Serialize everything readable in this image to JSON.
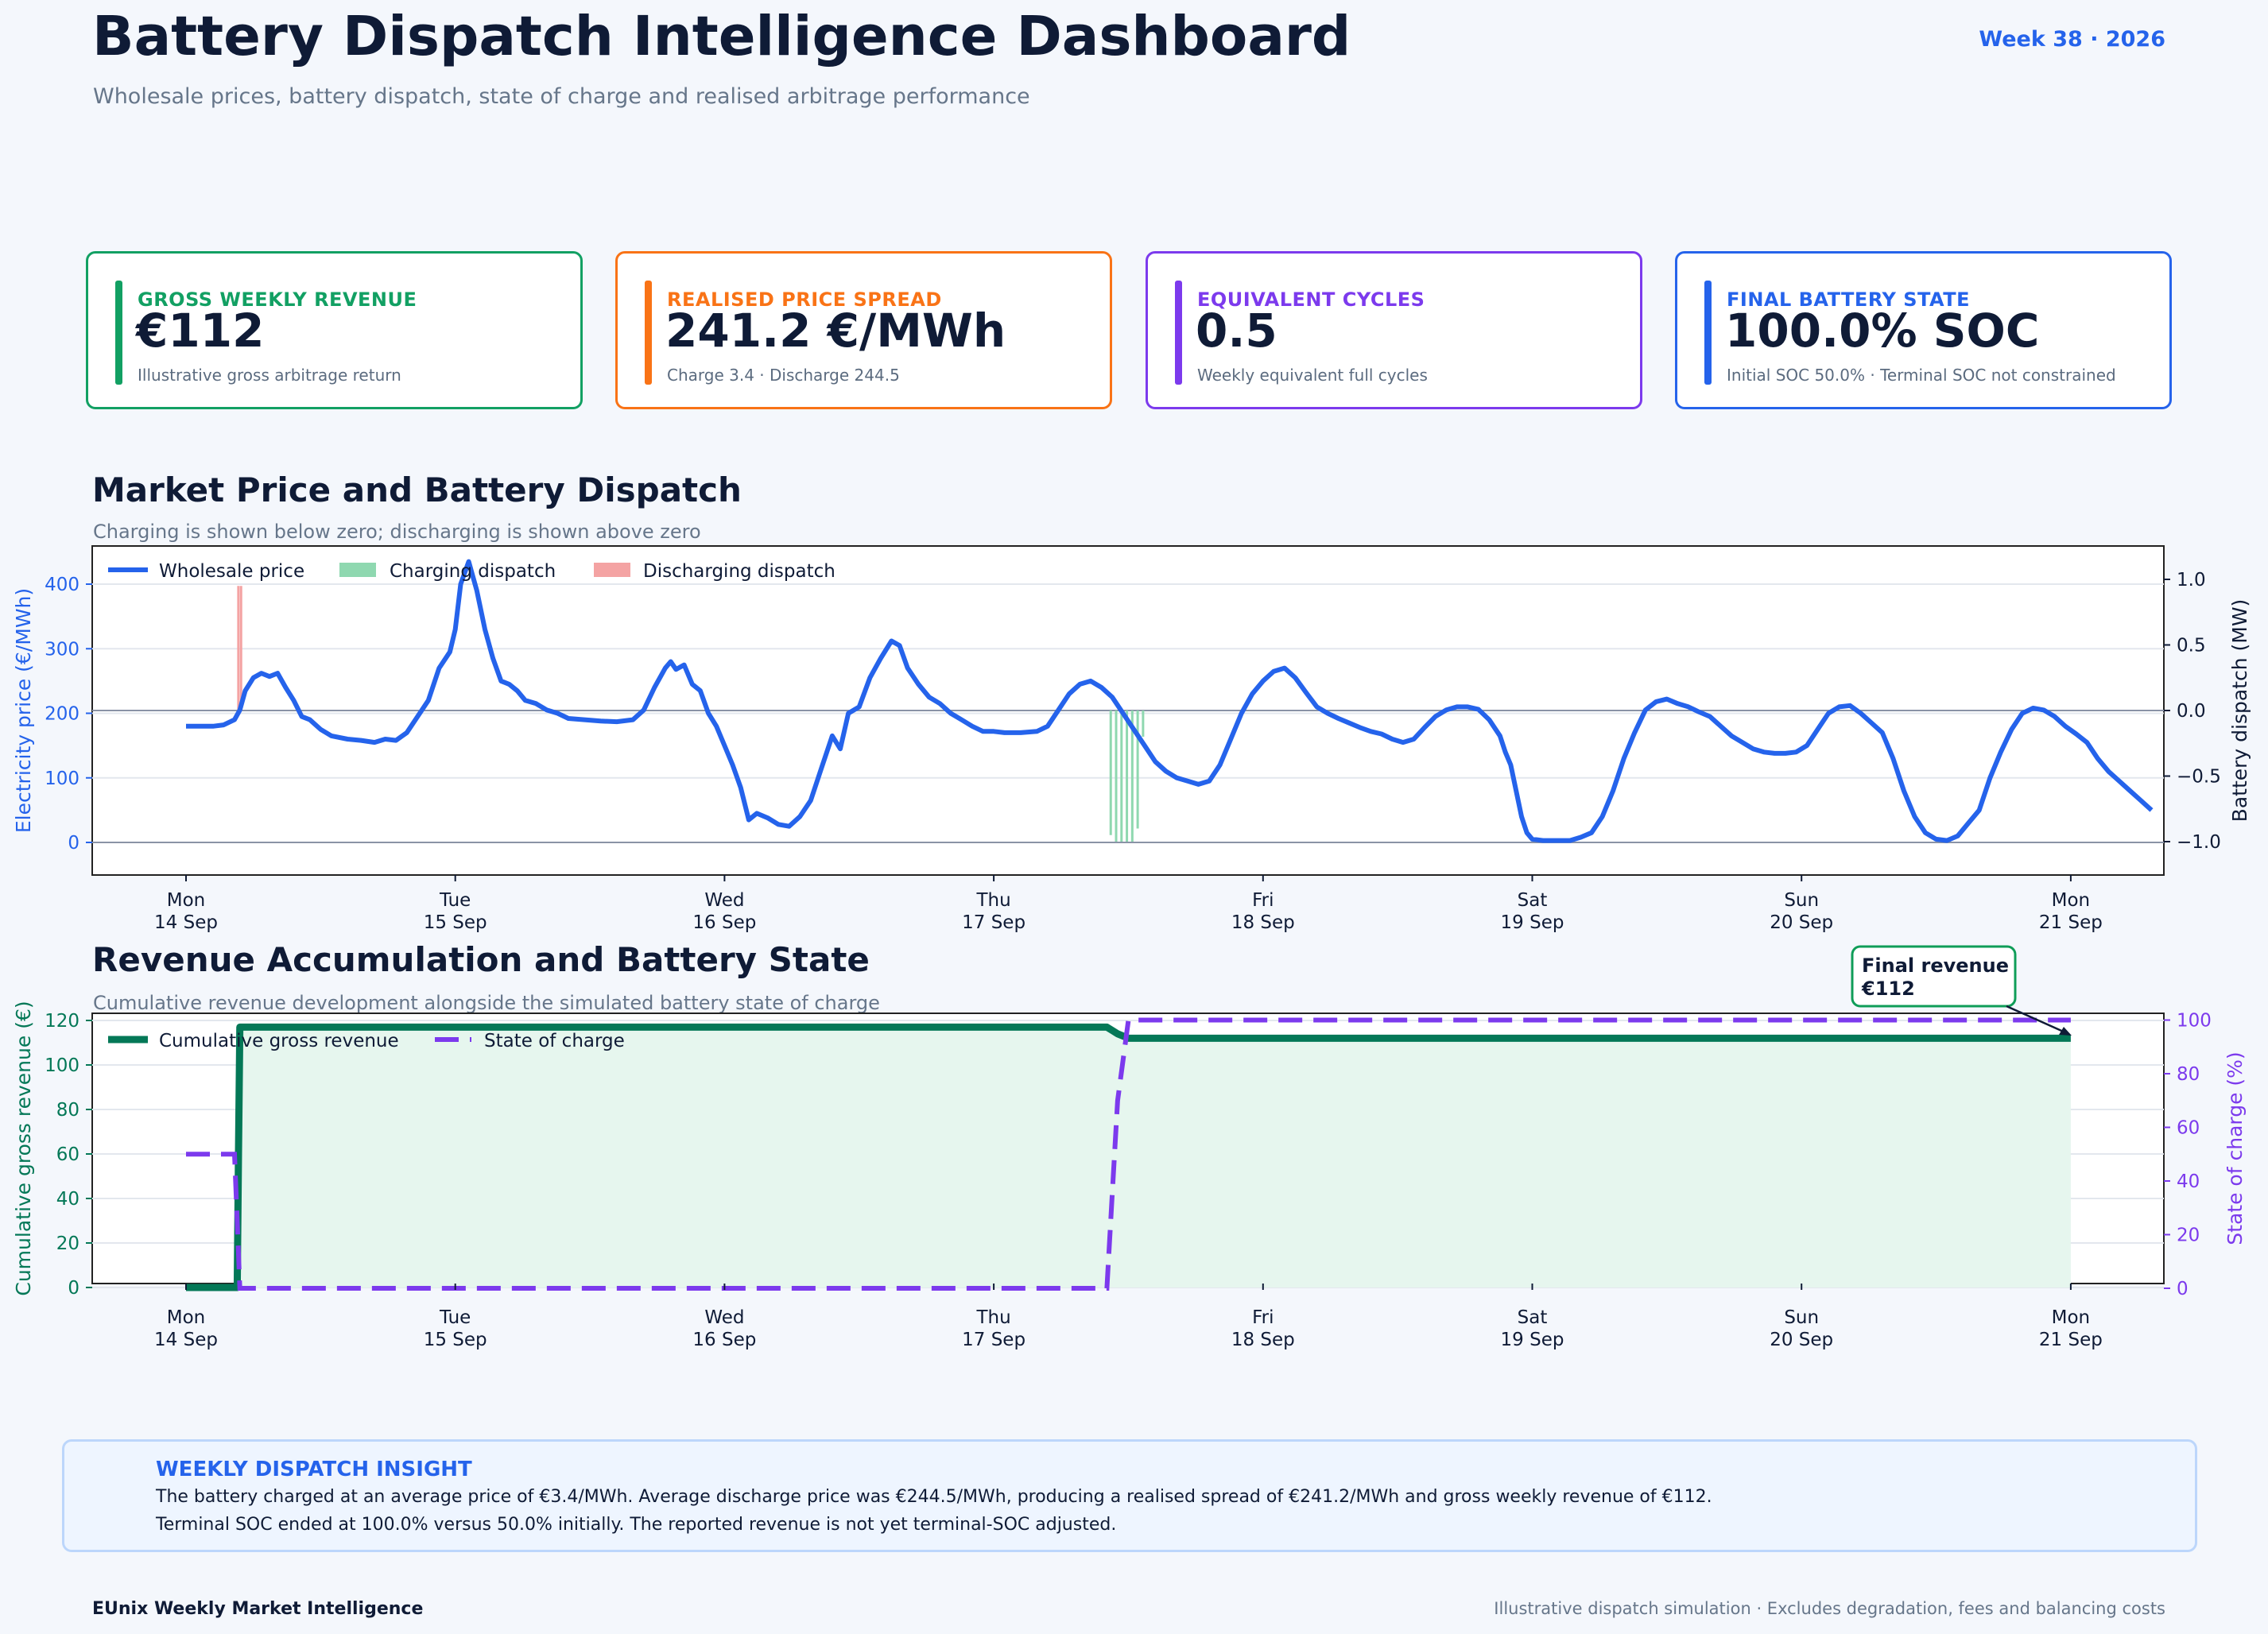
{
  "header": {
    "title": "Battery Dispatch Intelligence Dashboard",
    "subtitle": "Wholesale prices, battery dispatch, state of charge and realised arbitrage performance",
    "week": "Week 38 · 2026"
  },
  "colors": {
    "green": "#0f9d58",
    "orange": "#f97316",
    "purple": "#7c3aed",
    "blue": "#2563eb",
    "navy": "#0f1b36",
    "darkgreen": "#047857"
  },
  "kpis": [
    {
      "label": "GROSS WEEKLY REVENUE",
      "value": "€112",
      "note": "Illustrative gross arbitrage return",
      "color": "#12a063"
    },
    {
      "label": "REALISED PRICE SPREAD",
      "value": "241.2 €/MWh",
      "note": "Charge 3.4 · Discharge 244.5",
      "color": "#f97316"
    },
    {
      "label": "EQUIVALENT CYCLES",
      "value": "0.5",
      "note": "Weekly equivalent full cycles",
      "color": "#7c3aed"
    },
    {
      "label": "FINAL BATTERY STATE",
      "value": "100.0% SOC",
      "note": "Initial SOC 50.0% · Terminal SOC not constrained",
      "color": "#2563eb"
    }
  ],
  "sections": {
    "market": {
      "title": "Market Price and Battery Dispatch",
      "subtitle": "Charging is shown below zero; discharging is shown above zero"
    },
    "revenue": {
      "title": "Revenue Accumulation and Battery State",
      "subtitle": "Cumulative revenue development alongside the simulated battery state of charge"
    }
  },
  "insight": {
    "heading": "WEEKLY DISPATCH INSIGHT",
    "line1": "The battery charged at an average price of €3.4/MWh. Average discharge price was €244.5/MWh, producing a realised spread of €241.2/MWh and gross weekly revenue of €112.",
    "line2": "Terminal SOC ended at 100.0% versus 50.0% initially. The reported revenue is not yet terminal-SOC adjusted."
  },
  "footer": {
    "left": "EUnix Weekly Market Intelligence",
    "right": "Illustrative dispatch simulation · Excludes degradation, fees and balancing costs"
  },
  "chart_data": [
    {
      "type": "line",
      "x_axis": {
        "ticks": [
          [
            "Mon",
            "14 Sep"
          ],
          [
            "Tue",
            "15 Sep"
          ],
          [
            "Wed",
            "16 Sep"
          ],
          [
            "Thu",
            "17 Sep"
          ],
          [
            "Fri",
            "18 Sep"
          ],
          [
            "Sat",
            "19 Sep"
          ],
          [
            "Sun",
            "20 Sep"
          ],
          [
            "Mon",
            "21 Sep"
          ]
        ],
        "range_days": [
          -0.35,
          7.35
        ]
      },
      "y_left": {
        "label": "Electricity price (€/MWh)",
        "ticks": [
          0,
          100,
          200,
          300,
          400
        ],
        "ylim": [
          -50,
          460
        ]
      },
      "y_right": {
        "label": "Battery dispatch (MW)",
        "ticks": [
          "1.0",
          "0.5",
          "0.0",
          "−0.5",
          "−1.0"
        ],
        "ylim": [
          -1.25,
          1.25
        ]
      },
      "legend": [
        "Wholesale price",
        "Charging dispatch",
        "Discharging dispatch"
      ],
      "legend_position": "top-left",
      "price_series": {
        "name": "Wholesale price",
        "points": [
          [
            0,
            180
          ],
          [
            0.1,
            180
          ],
          [
            0.14,
            182
          ],
          [
            0.18,
            190
          ],
          [
            0.2,
            205
          ],
          [
            0.22,
            235
          ],
          [
            0.25,
            255
          ],
          [
            0.28,
            262
          ],
          [
            0.31,
            257
          ],
          [
            0.34,
            262
          ],
          [
            0.37,
            240
          ],
          [
            0.4,
            220
          ],
          [
            0.43,
            195
          ],
          [
            0.46,
            190
          ],
          [
            0.5,
            175
          ],
          [
            0.54,
            165
          ],
          [
            0.6,
            160
          ],
          [
            0.65,
            158
          ],
          [
            0.7,
            155
          ],
          [
            0.74,
            160
          ],
          [
            0.78,
            158
          ],
          [
            0.82,
            170
          ],
          [
            0.86,
            195
          ],
          [
            0.9,
            220
          ],
          [
            0.94,
            270
          ],
          [
            0.98,
            295
          ],
          [
            1.0,
            330
          ],
          [
            1.02,
            400
          ],
          [
            1.05,
            435
          ],
          [
            1.08,
            390
          ],
          [
            1.11,
            330
          ],
          [
            1.14,
            285
          ],
          [
            1.17,
            250
          ],
          [
            1.2,
            245
          ],
          [
            1.23,
            235
          ],
          [
            1.26,
            220
          ],
          [
            1.3,
            215
          ],
          [
            1.34,
            205
          ],
          [
            1.38,
            200
          ],
          [
            1.42,
            192
          ],
          [
            1.48,
            190
          ],
          [
            1.54,
            188
          ],
          [
            1.6,
            187
          ],
          [
            1.66,
            190
          ],
          [
            1.7,
            205
          ],
          [
            1.74,
            240
          ],
          [
            1.78,
            270
          ],
          [
            1.8,
            280
          ],
          [
            1.82,
            268
          ],
          [
            1.85,
            275
          ],
          [
            1.88,
            245
          ],
          [
            1.91,
            235
          ],
          [
            1.94,
            200
          ],
          [
            1.97,
            180
          ],
          [
            2.0,
            150
          ],
          [
            2.03,
            120
          ],
          [
            2.06,
            85
          ],
          [
            2.09,
            35
          ],
          [
            2.12,
            45
          ],
          [
            2.16,
            38
          ],
          [
            2.2,
            28
          ],
          [
            2.24,
            25
          ],
          [
            2.28,
            40
          ],
          [
            2.32,
            65
          ],
          [
            2.36,
            115
          ],
          [
            2.4,
            165
          ],
          [
            2.43,
            145
          ],
          [
            2.46,
            200
          ],
          [
            2.5,
            210
          ],
          [
            2.54,
            255
          ],
          [
            2.58,
            285
          ],
          [
            2.62,
            312
          ],
          [
            2.65,
            305
          ],
          [
            2.68,
            270
          ],
          [
            2.72,
            245
          ],
          [
            2.76,
            225
          ],
          [
            2.8,
            215
          ],
          [
            2.84,
            200
          ],
          [
            2.88,
            190
          ],
          [
            2.92,
            180
          ],
          [
            2.96,
            172
          ],
          [
            3.0,
            172
          ],
          [
            3.04,
            170
          ],
          [
            3.1,
            170
          ],
          [
            3.16,
            172
          ],
          [
            3.2,
            180
          ],
          [
            3.24,
            205
          ],
          [
            3.28,
            230
          ],
          [
            3.32,
            245
          ],
          [
            3.36,
            250
          ],
          [
            3.4,
            240
          ],
          [
            3.44,
            225
          ],
          [
            3.48,
            200
          ],
          [
            3.52,
            175
          ],
          [
            3.56,
            150
          ],
          [
            3.6,
            125
          ],
          [
            3.64,
            110
          ],
          [
            3.68,
            100
          ],
          [
            3.72,
            95
          ],
          [
            3.76,
            90
          ],
          [
            3.8,
            95
          ],
          [
            3.84,
            120
          ],
          [
            3.88,
            160
          ],
          [
            3.92,
            200
          ],
          [
            3.96,
            230
          ],
          [
            4.0,
            250
          ],
          [
            4.04,
            265
          ],
          [
            4.08,
            270
          ],
          [
            4.12,
            255
          ],
          [
            4.16,
            232
          ],
          [
            4.2,
            210
          ],
          [
            4.24,
            200
          ],
          [
            4.28,
            192
          ],
          [
            4.32,
            185
          ],
          [
            4.36,
            178
          ],
          [
            4.4,
            172
          ],
          [
            4.44,
            168
          ],
          [
            4.48,
            160
          ],
          [
            4.52,
            155
          ],
          [
            4.56,
            160
          ],
          [
            4.6,
            178
          ],
          [
            4.64,
            195
          ],
          [
            4.68,
            205
          ],
          [
            4.72,
            210
          ],
          [
            4.76,
            210
          ],
          [
            4.8,
            206
          ],
          [
            4.84,
            190
          ],
          [
            4.88,
            165
          ],
          [
            4.9,
            140
          ],
          [
            4.92,
            120
          ],
          [
            4.94,
            80
          ],
          [
            4.96,
            40
          ],
          [
            4.98,
            15
          ],
          [
            5.0,
            5
          ],
          [
            5.04,
            3
          ],
          [
            5.1,
            3
          ],
          [
            5.14,
            3
          ],
          [
            5.18,
            8
          ],
          [
            5.22,
            15
          ],
          [
            5.26,
            40
          ],
          [
            5.3,
            80
          ],
          [
            5.34,
            130
          ],
          [
            5.38,
            170
          ],
          [
            5.42,
            205
          ],
          [
            5.46,
            218
          ],
          [
            5.5,
            222
          ],
          [
            5.54,
            215
          ],
          [
            5.58,
            210
          ],
          [
            5.62,
            202
          ],
          [
            5.66,
            195
          ],
          [
            5.7,
            180
          ],
          [
            5.74,
            165
          ],
          [
            5.78,
            155
          ],
          [
            5.82,
            145
          ],
          [
            5.86,
            140
          ],
          [
            5.9,
            138
          ],
          [
            5.94,
            138
          ],
          [
            5.98,
            140
          ],
          [
            6.02,
            150
          ],
          [
            6.06,
            175
          ],
          [
            6.1,
            200
          ],
          [
            6.14,
            210
          ],
          [
            6.18,
            212
          ],
          [
            6.22,
            200
          ],
          [
            6.26,
            185
          ],
          [
            6.3,
            170
          ],
          [
            6.34,
            130
          ],
          [
            6.38,
            80
          ],
          [
            6.42,
            40
          ],
          [
            6.46,
            15
          ],
          [
            6.5,
            5
          ],
          [
            6.54,
            3
          ],
          [
            6.58,
            10
          ],
          [
            6.62,
            30
          ],
          [
            6.66,
            50
          ],
          [
            6.7,
            100
          ],
          [
            6.74,
            140
          ],
          [
            6.78,
            175
          ],
          [
            6.82,
            200
          ],
          [
            6.86,
            208
          ],
          [
            6.9,
            205
          ],
          [
            6.94,
            195
          ],
          [
            6.98,
            180
          ],
          [
            7.02,
            168
          ],
          [
            7.06,
            155
          ],
          [
            7.1,
            130
          ],
          [
            7.14,
            110
          ],
          [
            7.18,
            95
          ],
          [
            7.22,
            80
          ],
          [
            7.26,
            65
          ],
          [
            7.3,
            50
          ]
        ]
      },
      "charging_dispatch": {
        "name": "Charging dispatch",
        "x_day": [
          3.43,
          3.45,
          3.47,
          3.49,
          3.51,
          3.53,
          3.55
        ],
        "mw": [
          -0.95,
          -1.0,
          -1.0,
          -1.0,
          -1.0,
          -0.9,
          -0.2
        ]
      },
      "discharging_dispatch": {
        "name": "Discharging dispatch",
        "x_day": [
          0.19,
          0.2
        ],
        "mw": [
          0.95,
          0.95
        ]
      }
    },
    {
      "type": "line",
      "x_axis": {
        "ticks": [
          [
            "Mon",
            "14 Sep"
          ],
          [
            "Tue",
            "15 Sep"
          ],
          [
            "Wed",
            "16 Sep"
          ],
          [
            "Thu",
            "17 Sep"
          ],
          [
            "Fri",
            "18 Sep"
          ],
          [
            "Sat",
            "19 Sep"
          ],
          [
            "Sun",
            "20 Sep"
          ],
          [
            "Mon",
            "21 Sep"
          ]
        ]
      },
      "y_left": {
        "label": "Cumulative gross revenue (€)",
        "ticks": [
          0,
          20,
          40,
          60,
          80,
          100,
          120
        ],
        "ylim": [
          -5,
          122
        ]
      },
      "y_right": {
        "label": "State of charge (%)",
        "ticks": [
          0,
          20,
          40,
          60,
          80,
          100
        ],
        "ylim": [
          -3,
          103
        ]
      },
      "legend": [
        "Cumulative gross revenue",
        "State of charge"
      ],
      "legend_position": "top-left",
      "series": [
        {
          "name": "Cumulative gross revenue",
          "points": [
            [
              0,
              0
            ],
            [
              0.19,
              0
            ],
            [
              0.195,
              60
            ],
            [
              0.2,
              117
            ],
            [
              3.42,
              117
            ],
            [
              3.46,
              114
            ],
            [
              3.5,
              112
            ],
            [
              7.0,
              112
            ]
          ]
        },
        {
          "name": "State of charge",
          "points": [
            [
              0,
              50
            ],
            [
              0.18,
              50
            ],
            [
              0.19,
              25
            ],
            [
              0.2,
              0
            ],
            [
              3.42,
              0
            ],
            [
              3.44,
              35
            ],
            [
              3.46,
              70
            ],
            [
              3.5,
              100
            ],
            [
              7.0,
              100
            ]
          ]
        }
      ],
      "annotation": {
        "text_line1": "Final revenue",
        "text_line2": "€112"
      }
    }
  ]
}
